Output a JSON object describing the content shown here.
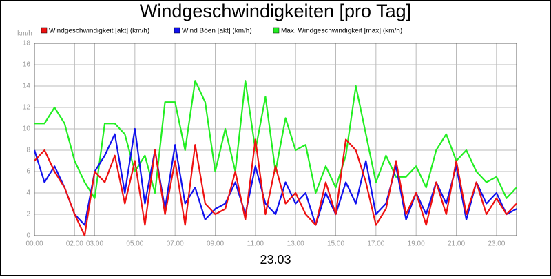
{
  "chart_data": {
    "type": "line",
    "title": "Windgeschwindigkeiten [pro Tag]",
    "y_unit": "km/h",
    "x_label": "23.03",
    "x": [
      0,
      0.5,
      1,
      1.5,
      2,
      2.5,
      3,
      3.5,
      4,
      4.5,
      5,
      5.5,
      6,
      6.5,
      7,
      7.5,
      8,
      8.5,
      9,
      9.5,
      10,
      10.5,
      11,
      11.5,
      12,
      12.5,
      13,
      13.5,
      14,
      14.5,
      15,
      15.5,
      16,
      16.5,
      17,
      17.5,
      18,
      18.5,
      19,
      19.5,
      20,
      20.5,
      21,
      21.5,
      22,
      22.5,
      23,
      23.5,
      24
    ],
    "series": [
      {
        "name": "Windgeschwindigkeit [akt] (km/h)",
        "color": "#ee1111",
        "values": [
          7,
          8,
          6,
          4.5,
          2,
          0,
          6,
          5,
          7.5,
          3,
          7,
          1,
          8,
          2,
          7,
          1,
          8.5,
          3,
          2,
          2.5,
          6,
          1.5,
          9,
          2,
          6.5,
          3,
          4,
          2,
          1,
          5,
          2,
          9,
          8,
          5,
          1,
          2.5,
          7,
          2,
          4,
          1,
          5,
          2,
          7,
          2,
          5,
          2,
          3.5,
          2,
          3
        ]
      },
      {
        "name": "Wind Böen [akt] (km/h)",
        "color": "#1111ee",
        "values": [
          8,
          5,
          6.5,
          4.5,
          2,
          1,
          6,
          7.5,
          9.5,
          4,
          10,
          3,
          8,
          2.5,
          8.5,
          3,
          4.5,
          1.5,
          2.5,
          3,
          5,
          2,
          6.5,
          3,
          2,
          5,
          3,
          4,
          1,
          4,
          2,
          5,
          3,
          7,
          2,
          3,
          6.5,
          1.5,
          4,
          2,
          5,
          3,
          6.5,
          1.5,
          5,
          3,
          4,
          2,
          2.5
        ]
      },
      {
        "name": "Max. Windgeschwindigkeit [max] (km/h)",
        "color": "#22ee22",
        "values": [
          10.5,
          10.5,
          12,
          10.5,
          7,
          5,
          3.5,
          10.5,
          10.5,
          9.5,
          6,
          7.5,
          4,
          12.5,
          12.5,
          8,
          14.5,
          12.5,
          6,
          10,
          6,
          14.5,
          8,
          13,
          6,
          11,
          8,
          8.5,
          4,
          6.5,
          4.5,
          7.5,
          14,
          9.5,
          5,
          7.5,
          5.5,
          5.5,
          6.5,
          4.5,
          8,
          9.5,
          7,
          8,
          6,
          5,
          5.5,
          3.5,
          4.5
        ]
      }
    ],
    "xlim": [
      0,
      24
    ],
    "xticks": [
      {
        "value": 0,
        "label": "00:00"
      },
      {
        "value": 2,
        "label": "02:00"
      },
      {
        "value": 3,
        "label": "03:00"
      },
      {
        "value": 5,
        "label": "05:00"
      },
      {
        "value": 7,
        "label": "07:00"
      },
      {
        "value": 9,
        "label": "09:00"
      },
      {
        "value": 11,
        "label": "11:00"
      },
      {
        "value": 13,
        "label": "13:00"
      },
      {
        "value": 15,
        "label": "15:00"
      },
      {
        "value": 17,
        "label": "17:00"
      },
      {
        "value": 19,
        "label": "19:00"
      },
      {
        "value": 21,
        "label": "21:00"
      },
      {
        "value": 23,
        "label": "23:00"
      }
    ],
    "ylim": [
      0,
      18
    ],
    "yticks": [
      0,
      2,
      4,
      6,
      8,
      10,
      12,
      14,
      16,
      18
    ],
    "grid": true
  }
}
